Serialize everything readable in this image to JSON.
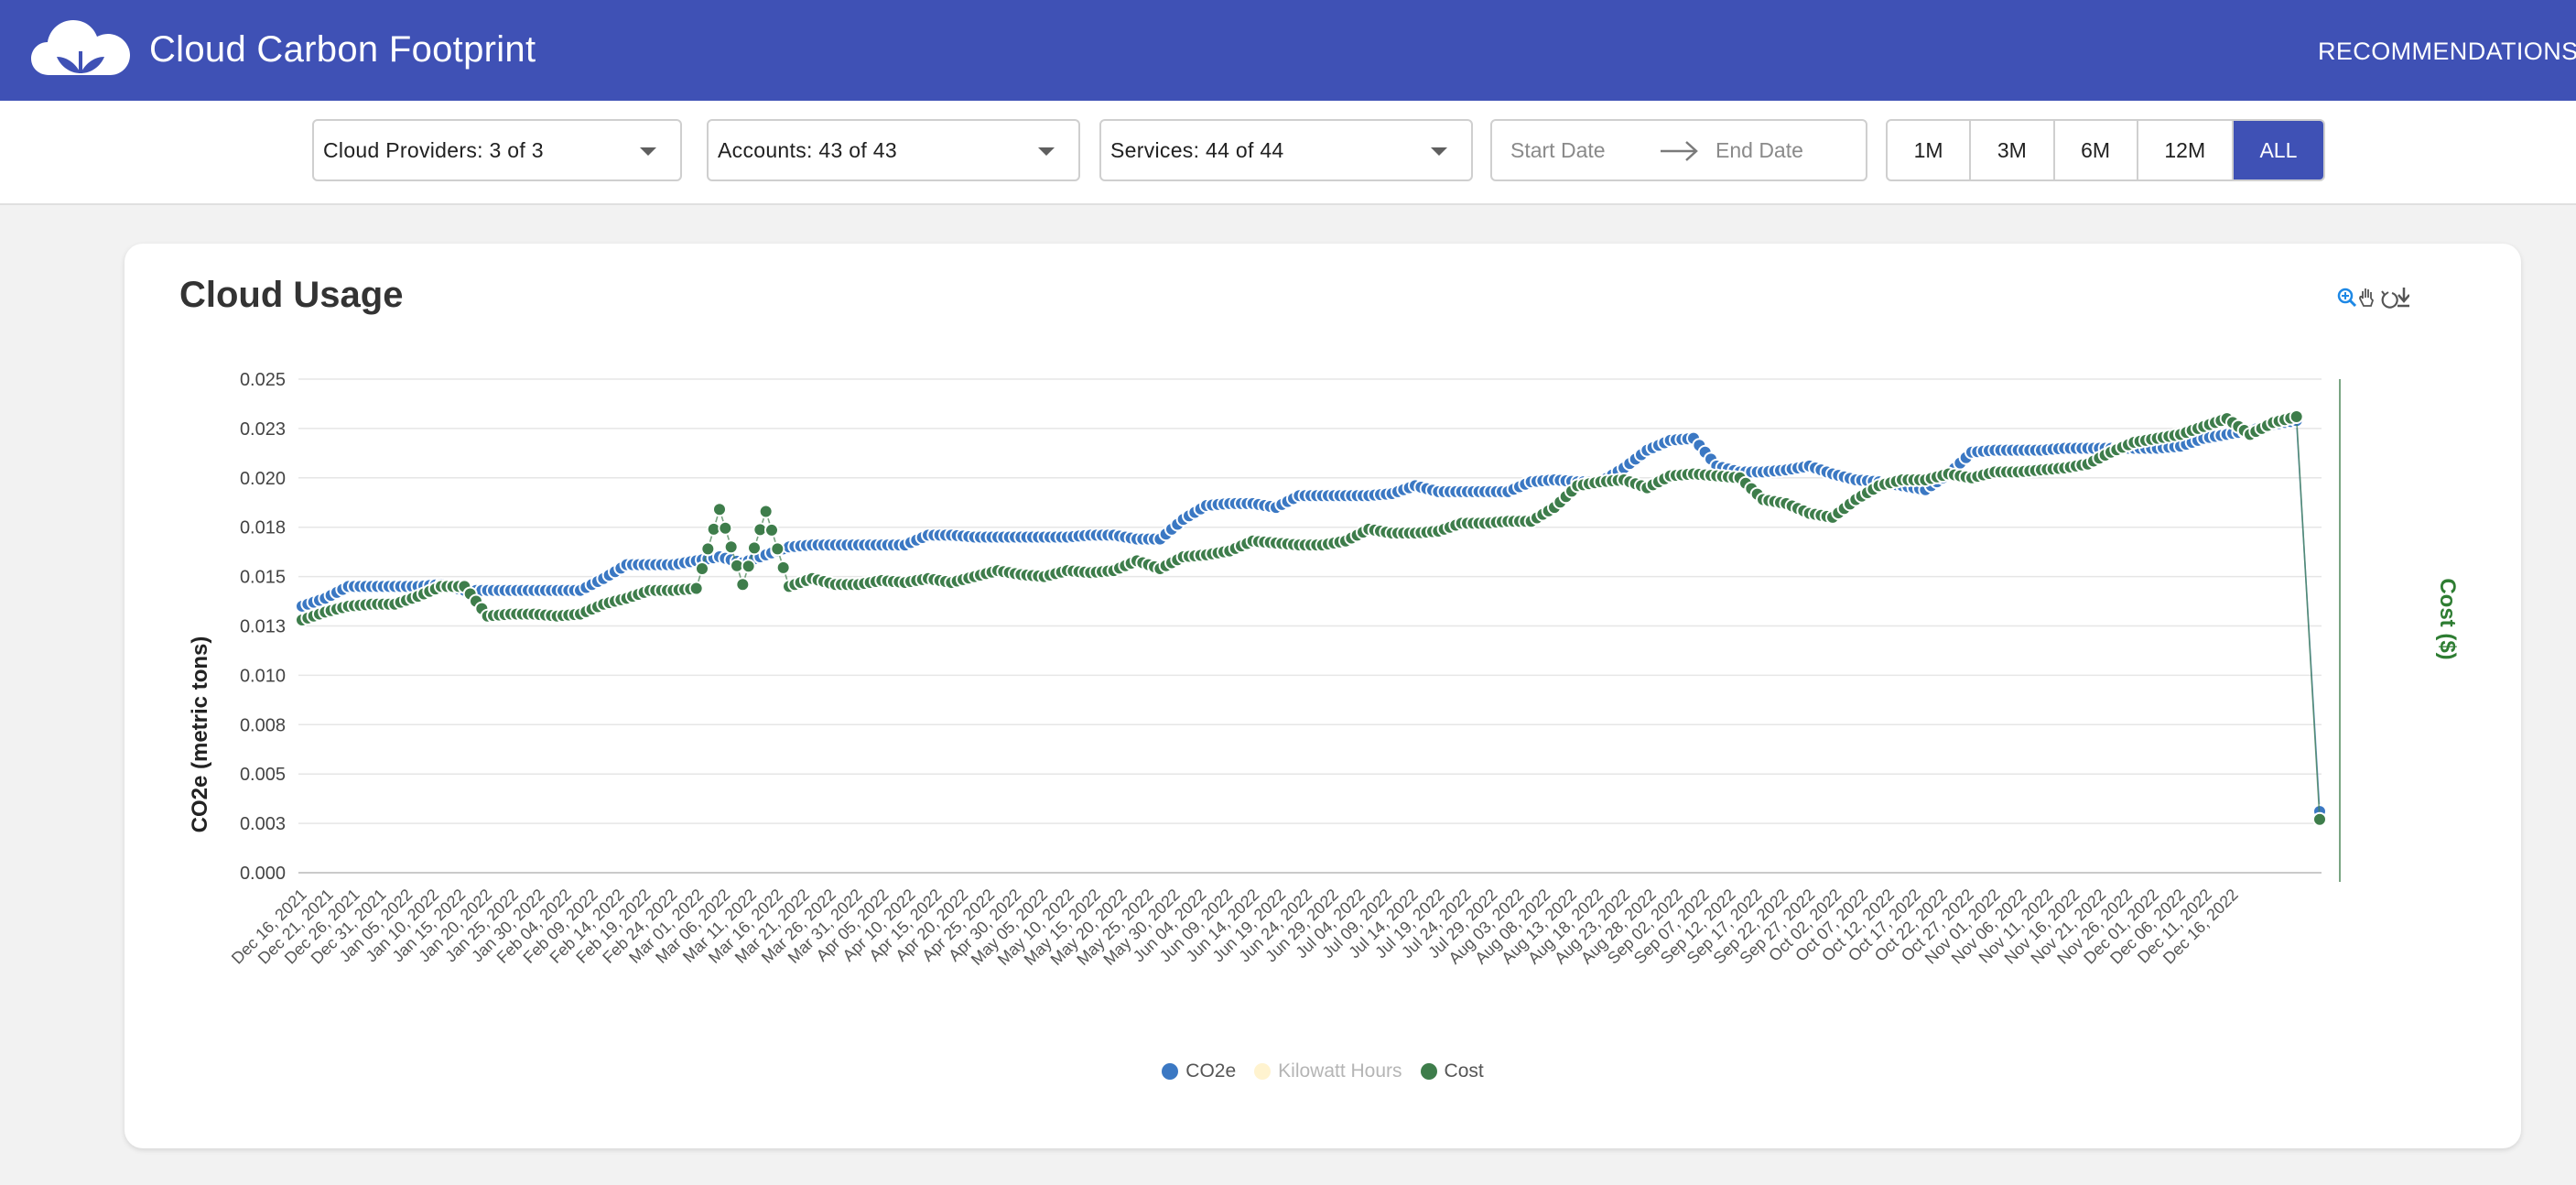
{
  "header": {
    "title": "Cloud Carbon Footprint",
    "nav_recommendations": "RECOMMENDATIONS",
    "brand_color": "#3f51b5"
  },
  "filters": {
    "cloud_providers": "Cloud Providers: 3 of 3",
    "accounts": "Accounts: 43 of 43",
    "services": "Services: 44 of 44",
    "start_date_placeholder": "Start Date",
    "end_date_placeholder": "End Date",
    "ranges": [
      {
        "label": "1M",
        "active": false
      },
      {
        "label": "3M",
        "active": false
      },
      {
        "label": "6M",
        "active": false
      },
      {
        "label": "12M",
        "active": false
      },
      {
        "label": "ALL",
        "active": true
      }
    ]
  },
  "card": {
    "title": "Cloud Usage",
    "toolbar_icons": [
      "zoom-icon",
      "pan-icon",
      "reset-icon",
      "download-icon"
    ]
  },
  "chart_data": {
    "type": "scatter",
    "title": "Cloud Usage",
    "ylabel": "CO2e (metric tons)",
    "y2label": "Cost ($)",
    "ylim": [
      0,
      0.025
    ],
    "y_ticks": [
      "0.000",
      "0.003",
      "0.005",
      "0.008",
      "0.010",
      "0.013",
      "0.015",
      "0.018",
      "0.020",
      "0.023",
      "0.025"
    ],
    "grid": true,
    "legend_position": "bottom-center",
    "x_tick_labels": [
      "Dec 16, 2021",
      "Dec 21, 2021",
      "Dec 26, 2021",
      "Dec 31, 2021",
      "Jan 05, 2022",
      "Jan 10, 2022",
      "Jan 15, 2022",
      "Jan 20, 2022",
      "Jan 25, 2022",
      "Jan 30, 2022",
      "Feb 04, 2022",
      "Feb 09, 2022",
      "Feb 14, 2022",
      "Feb 19, 2022",
      "Feb 24, 2022",
      "Mar 01, 2022",
      "Mar 06, 2022",
      "Mar 11, 2022",
      "Mar 16, 2022",
      "Mar 21, 2022",
      "Mar 26, 2022",
      "Mar 31, 2022",
      "Apr 05, 2022",
      "Apr 10, 2022",
      "Apr 15, 2022",
      "Apr 20, 2022",
      "Apr 25, 2022",
      "Apr 30, 2022",
      "May 05, 2022",
      "May 10, 2022",
      "May 15, 2022",
      "May 20, 2022",
      "May 25, 2022",
      "May 30, 2022",
      "Jun 04, 2022",
      "Jun 09, 2022",
      "Jun 14, 2022",
      "Jun 19, 2022",
      "Jun 24, 2022",
      "Jun 29, 2022",
      "Jul 04, 2022",
      "Jul 09, 2022",
      "Jul 14, 2022",
      "Jul 19, 2022",
      "Jul 24, 2022",
      "Jul 29, 2022",
      "Aug 03, 2022",
      "Aug 08, 2022",
      "Aug 13, 2022",
      "Aug 18, 2022",
      "Aug 23, 2022",
      "Aug 28, 2022",
      "Sep 02, 2022",
      "Sep 07, 2022",
      "Sep 12, 2022",
      "Sep 17, 2022",
      "Sep 22, 2022",
      "Sep 27, 2022",
      "Oct 02, 2022",
      "Oct 07, 2022",
      "Oct 12, 2022",
      "Oct 17, 2022",
      "Oct 22, 2022",
      "Oct 27, 2022",
      "Nov 01, 2022",
      "Nov 06, 2022",
      "Nov 11, 2022",
      "Nov 16, 2022",
      "Nov 21, 2022",
      "Nov 26, 2022",
      "Dec 01, 2022",
      "Dec 06, 2022",
      "Dec 11, 2022",
      "Dec 16, 2022"
    ],
    "series": [
      {
        "name": "CO2e",
        "color": "#3b78c3",
        "values": [
          0.0135,
          0.0139,
          0.0145,
          0.0145,
          0.0145,
          0.0145,
          0.0146,
          0.0143,
          0.0143,
          0.0143,
          0.0143,
          0.0143,
          0.0143,
          0.0149,
          0.0156,
          0.0156,
          0.0156,
          0.0158,
          0.016,
          0.0157,
          0.0161,
          0.0165,
          0.0166,
          0.0166,
          0.0166,
          0.0166,
          0.0166,
          0.0171,
          0.0171,
          0.017,
          0.017,
          0.017,
          0.017,
          0.017,
          0.0171,
          0.0171,
          0.0169,
          0.0169,
          0.0179,
          0.0186,
          0.0187,
          0.0187,
          0.0185,
          0.0191,
          0.0191,
          0.0191,
          0.0191,
          0.0192,
          0.0196,
          0.0193,
          0.0193,
          0.0193,
          0.0193,
          0.0198,
          0.0199,
          0.0198,
          0.0198,
          0.0205,
          0.0214,
          0.0219,
          0.022,
          0.0206,
          0.0203,
          0.0203,
          0.0204,
          0.0206,
          0.0202,
          0.0199,
          0.0198,
          0.0196,
          0.0194,
          0.0202,
          0.0213,
          0.0214,
          0.0214,
          0.0214,
          0.0215,
          0.0215,
          0.0215,
          0.0215,
          0.0215,
          0.0216,
          0.022,
          0.0222,
          0.0224,
          0.0227,
          0.0229,
          0.0031
        ]
      },
      {
        "name": "Kilowatt Hours",
        "color": "#fff3cf",
        "values": []
      },
      {
        "name": "Cost",
        "color": "#3e7d4b",
        "values": [
          0.0128,
          0.0132,
          0.0135,
          0.0136,
          0.0136,
          0.014,
          0.0145,
          0.0145,
          0.013,
          0.0131,
          0.0131,
          0.013,
          0.0131,
          0.0136,
          0.0139,
          0.0143,
          0.0143,
          0.0144,
          0.0184,
          0.0146,
          0.0183,
          0.0145,
          0.0149,
          0.0146,
          0.0146,
          0.0148,
          0.0147,
          0.0149,
          0.0147,
          0.015,
          0.0153,
          0.0151,
          0.015,
          0.0153,
          0.0152,
          0.0153,
          0.0158,
          0.0154,
          0.016,
          0.0161,
          0.0163,
          0.0168,
          0.0167,
          0.0166,
          0.0166,
          0.0168,
          0.0174,
          0.0172,
          0.0172,
          0.0173,
          0.0177,
          0.0177,
          0.0178,
          0.0178,
          0.0185,
          0.0196,
          0.0198,
          0.0199,
          0.0195,
          0.0201,
          0.0202,
          0.0201,
          0.02,
          0.0189,
          0.0187,
          0.0182,
          0.018,
          0.0189,
          0.0196,
          0.0199,
          0.0199,
          0.0202,
          0.02,
          0.0203,
          0.0203,
          0.0204,
          0.0205,
          0.0207,
          0.0213,
          0.0218,
          0.022,
          0.0222,
          0.0226,
          0.023,
          0.0222,
          0.0228,
          0.0231,
          0.0027
        ]
      }
    ]
  }
}
